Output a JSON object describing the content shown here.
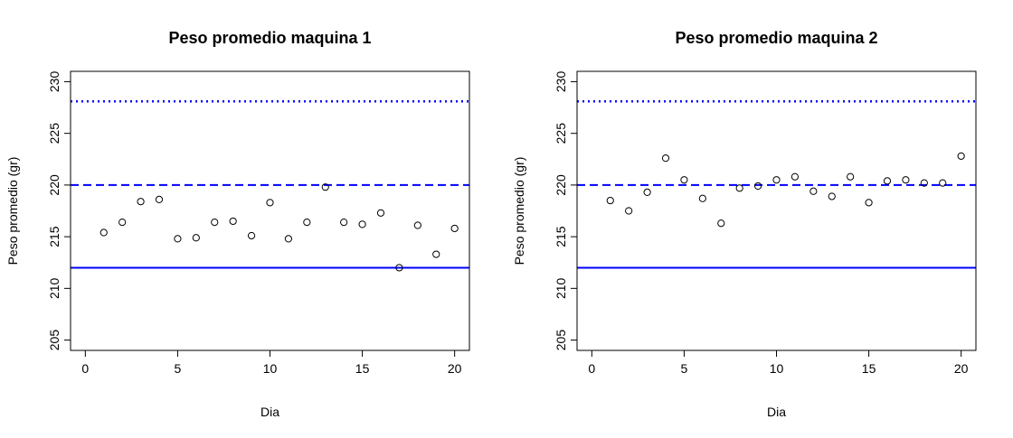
{
  "chart_data": [
    {
      "type": "scatter",
      "title": "Peso promedio maquina 1",
      "xlabel": "Dia",
      "ylabel": "Peso promedio (gr)",
      "xlim": [
        0,
        20
      ],
      "ylim": [
        205,
        230
      ],
      "xticks": [
        0,
        5,
        10,
        15,
        20
      ],
      "yticks": [
        205,
        210,
        215,
        220,
        225,
        230
      ],
      "grid": false,
      "points_x": [
        1,
        2,
        3,
        4,
        5,
        6,
        7,
        8,
        9,
        10,
        11,
        12,
        13,
        14,
        15,
        16,
        17,
        18,
        19,
        20
      ],
      "points_y": [
        215.4,
        216.4,
        218.4,
        218.6,
        214.8,
        214.9,
        216.4,
        216.5,
        215.1,
        218.3,
        214.8,
        216.4,
        219.8,
        216.4,
        216.2,
        217.3,
        212.0,
        216.1,
        213.3,
        215.8
      ],
      "reference_lines": [
        {
          "y": 228.1,
          "style": "dotted",
          "color": "#0000ff"
        },
        {
          "y": 220.0,
          "style": "dashed",
          "color": "#0000ff"
        },
        {
          "y": 212.0,
          "style": "solid",
          "color": "#0000ff"
        }
      ]
    },
    {
      "type": "scatter",
      "title": "Peso promedio maquina 2",
      "xlabel": "Dia",
      "ylabel": "Peso promedio (gr)",
      "xlim": [
        0,
        20
      ],
      "ylim": [
        205,
        230
      ],
      "xticks": [
        0,
        5,
        10,
        15,
        20
      ],
      "yticks": [
        205,
        210,
        215,
        220,
        225,
        230
      ],
      "grid": false,
      "points_x": [
        1,
        2,
        3,
        4,
        5,
        6,
        7,
        8,
        9,
        10,
        11,
        12,
        13,
        14,
        15,
        16,
        17,
        18,
        19,
        20
      ],
      "points_y": [
        218.5,
        217.5,
        219.3,
        222.6,
        220.5,
        218.7,
        216.3,
        219.7,
        219.9,
        220.5,
        220.8,
        219.4,
        218.9,
        220.8,
        218.3,
        220.4,
        220.5,
        220.2,
        220.2,
        222.8
      ],
      "reference_lines": [
        {
          "y": 228.1,
          "style": "dotted",
          "color": "#0000ff"
        },
        {
          "y": 220.0,
          "style": "dashed",
          "color": "#0000ff"
        },
        {
          "y": 212.0,
          "style": "solid",
          "color": "#0000ff"
        }
      ]
    }
  ]
}
